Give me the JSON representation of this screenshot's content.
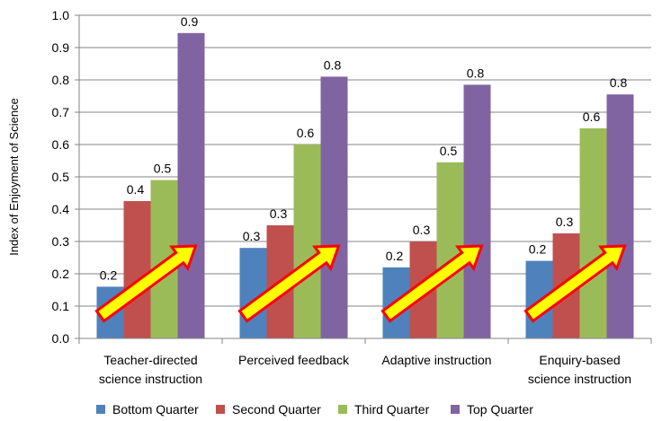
{
  "chart_data": {
    "type": "bar",
    "ylabel": "Index of Enjoyment of Science",
    "ylim": [
      0.0,
      1.0
    ],
    "yticks": [
      "0.0",
      "0.1",
      "0.2",
      "0.3",
      "0.4",
      "0.5",
      "0.6",
      "0.7",
      "0.8",
      "0.9",
      "1.0"
    ],
    "grid": true,
    "legend_position": "bottom",
    "categories": [
      [
        "Teacher-directed",
        "science instruction"
      ],
      [
        "Perceived feedback"
      ],
      [
        "Adaptive instruction"
      ],
      [
        "Enquiry-based",
        "science instruction"
      ]
    ],
    "series": [
      {
        "name": "Bottom Quarter",
        "color": "#4F81BD",
        "values": [
          0.16,
          0.28,
          0.22,
          0.24
        ],
        "labels": [
          "0.2",
          "0.3",
          "0.2",
          "0.2"
        ]
      },
      {
        "name": "Second Quarter",
        "color": "#C0504D",
        "values": [
          0.425,
          0.35,
          0.3,
          0.325
        ],
        "labels": [
          "0.4",
          "0.3",
          "0.3",
          "0.3"
        ]
      },
      {
        "name": "Third Quarter",
        "color": "#9BBB59",
        "values": [
          0.49,
          0.6,
          0.545,
          0.65
        ],
        "labels": [
          "0.5",
          "0.6",
          "0.5",
          "0.6"
        ]
      },
      {
        "name": "Top Quarter",
        "color": "#8064A2",
        "values": [
          0.945,
          0.81,
          0.785,
          0.755
        ],
        "labels": [
          "0.9",
          "0.8",
          "0.8",
          "0.8"
        ]
      }
    ],
    "annotations": [
      {
        "type": "arrow",
        "category_index": 0,
        "color": "#FFFF00",
        "outline": "#FF0000"
      },
      {
        "type": "arrow",
        "category_index": 1,
        "color": "#FFFF00",
        "outline": "#FF0000"
      },
      {
        "type": "arrow",
        "category_index": 2,
        "color": "#FFFF00",
        "outline": "#FF0000"
      },
      {
        "type": "arrow",
        "category_index": 3,
        "color": "#FFFF00",
        "outline": "#FF0000"
      }
    ]
  }
}
